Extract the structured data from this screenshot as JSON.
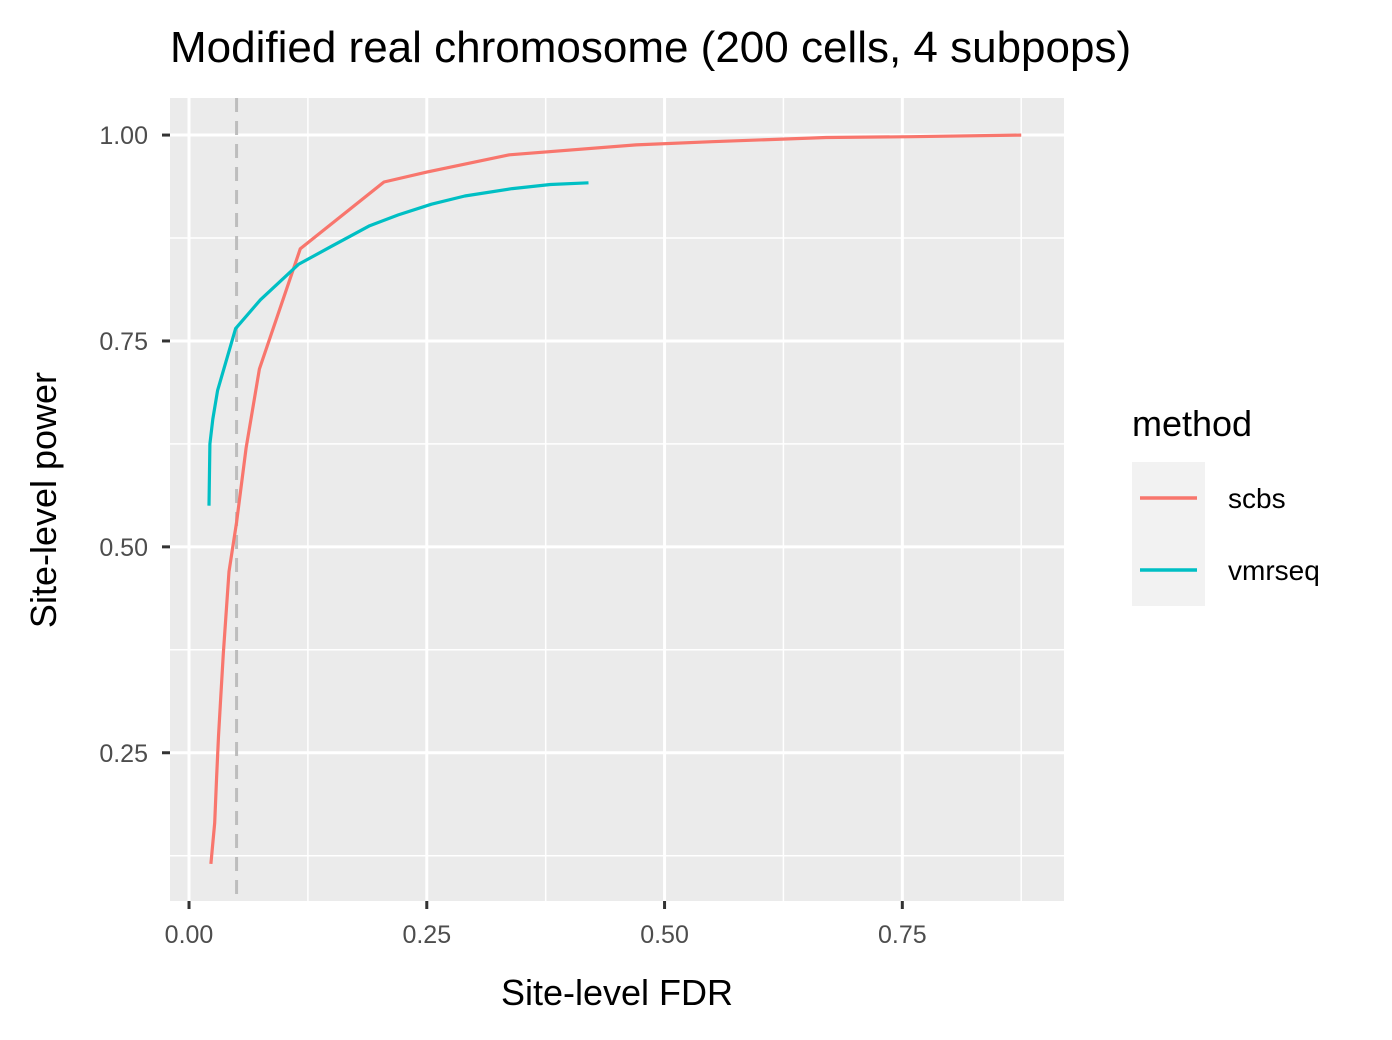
{
  "chart_data": {
    "type": "line",
    "title": "Modified real chromosome (200 cells, 4 subpops)",
    "xlabel": "Site-level FDR",
    "ylabel": "Site-level power",
    "xlim": [
      -0.02,
      0.92
    ],
    "ylim": [
      0.07,
      1.045
    ],
    "x_ticks": [
      0.0,
      0.25,
      0.5,
      0.75
    ],
    "x_tick_labels": [
      "0.00",
      "0.25",
      "0.50",
      "0.75"
    ],
    "y_ticks": [
      0.25,
      0.5,
      0.75,
      1.0
    ],
    "y_tick_labels": [
      "0.25",
      "0.50",
      "0.75",
      "1.00"
    ],
    "grid": true,
    "panel_background": "#ebebeb",
    "reference_line": {
      "x": 0.05,
      "style": "dashed",
      "color": "#bdbdbd"
    },
    "legend": {
      "title": "method",
      "position": "right",
      "entries": [
        "scbs",
        "vmrseq"
      ]
    },
    "series": [
      {
        "name": "scbs",
        "color": "#F8766D",
        "points": [
          [
            0.023,
            0.115
          ],
          [
            0.027,
            0.165
          ],
          [
            0.029,
            0.22
          ],
          [
            0.031,
            0.27
          ],
          [
            0.033,
            0.31
          ],
          [
            0.036,
            0.37
          ],
          [
            0.042,
            0.47
          ],
          [
            0.05,
            0.53
          ],
          [
            0.06,
            0.62
          ],
          [
            0.074,
            0.716
          ],
          [
            0.117,
            0.862
          ],
          [
            0.205,
            0.943
          ],
          [
            0.25,
            0.955
          ],
          [
            0.337,
            0.976
          ],
          [
            0.47,
            0.988
          ],
          [
            0.55,
            0.992
          ],
          [
            0.67,
            0.997
          ],
          [
            0.76,
            0.998
          ],
          [
            0.875,
            1.0
          ]
        ]
      },
      {
        "name": "vmrseq",
        "color": "#00BFC4",
        "points": [
          [
            0.021,
            0.55
          ],
          [
            0.022,
            0.625
          ],
          [
            0.025,
            0.655
          ],
          [
            0.03,
            0.69
          ],
          [
            0.049,
            0.765
          ],
          [
            0.075,
            0.8
          ],
          [
            0.115,
            0.843
          ],
          [
            0.15,
            0.865
          ],
          [
            0.19,
            0.89
          ],
          [
            0.22,
            0.903
          ],
          [
            0.255,
            0.916
          ],
          [
            0.29,
            0.926
          ],
          [
            0.34,
            0.935
          ],
          [
            0.38,
            0.94
          ],
          [
            0.42,
            0.942
          ]
        ]
      }
    ]
  }
}
